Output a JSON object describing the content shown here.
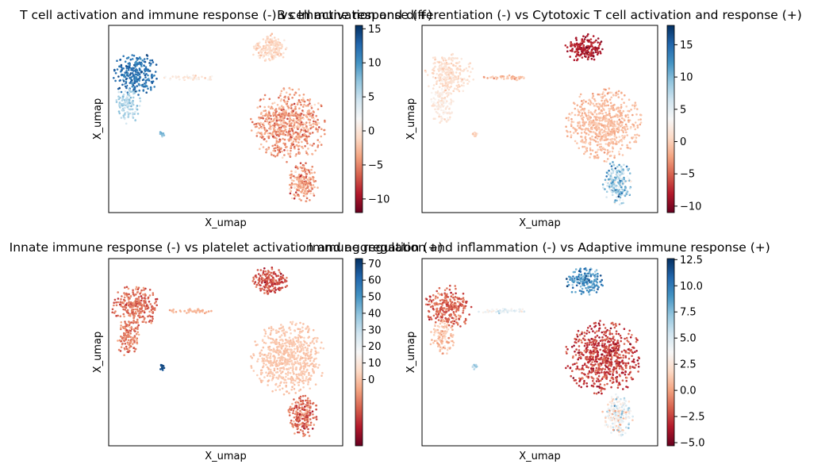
{
  "chart_data": [
    {
      "type": "scatter",
      "title": "T cell activation and immune response (-) vs Immune response (+)",
      "xlabel": "X_umap",
      "ylabel": "X_umap",
      "colormap": "RdBu",
      "colorbar": {
        "range": [
          -12,
          15.5
        ],
        "ticks": [
          15,
          10,
          5,
          0,
          -5,
          -10
        ],
        "tick_labels": [
          "15",
          "10",
          "5",
          "0",
          "−5",
          "−10"
        ]
      },
      "clusters": [
        {
          "name": "left-upper",
          "values_mean": 12,
          "values_range": [
            9,
            15
          ]
        },
        {
          "name": "left-lower",
          "values_mean": 6,
          "values_range": [
            3,
            9
          ]
        },
        {
          "name": "bridge",
          "values_mean": 0,
          "values_range": [
            -2,
            3
          ]
        },
        {
          "name": "small-isolated",
          "values_mean": 8,
          "values_range": [
            6,
            10
          ]
        },
        {
          "name": "top-right",
          "values_mean": -1,
          "values_range": [
            -3,
            1
          ]
        },
        {
          "name": "right-main",
          "values_mean": -4,
          "values_range": [
            -9,
            -1
          ]
        },
        {
          "name": "right-tail",
          "values_mean": -4,
          "values_range": [
            -10,
            0
          ]
        }
      ]
    },
    {
      "type": "scatter",
      "title": "B cell activation and differentiation (-) vs Cytotoxic T cell activation and response (+)",
      "xlabel": "X_umap",
      "ylabel": "X_umap",
      "colormap": "RdBu",
      "colorbar": {
        "range": [
          -11,
          18
        ],
        "ticks": [
          15,
          10,
          5,
          0,
          -5,
          -10
        ],
        "tick_labels": [
          "15",
          "10",
          "5",
          "0",
          "−5",
          "−10"
        ]
      },
      "clusters": [
        {
          "name": "left-upper",
          "values_mean": 1,
          "values_range": [
            -1,
            3
          ]
        },
        {
          "name": "left-lower",
          "values_mean": 2,
          "values_range": [
            0,
            4
          ]
        },
        {
          "name": "bridge",
          "values_mean": -1,
          "values_range": [
            -4,
            1
          ]
        },
        {
          "name": "small-isolated",
          "values_mean": 0,
          "values_range": [
            -2,
            2
          ]
        },
        {
          "name": "top-right",
          "values_mean": -8,
          "values_range": [
            -11,
            -5
          ]
        },
        {
          "name": "right-main",
          "values_mean": -1,
          "values_range": [
            -3,
            1
          ]
        },
        {
          "name": "right-tail",
          "values_mean": 8,
          "values_range": [
            2,
            18
          ]
        }
      ]
    },
    {
      "type": "scatter",
      "title": "Innate immune response (-) vs platelet activation and aggregation (+)",
      "xlabel": "X_umap",
      "ylabel": "X_umap",
      "colormap": "RdBu",
      "colorbar": {
        "range": [
          -40,
          73
        ],
        "ticks": [
          70,
          60,
          50,
          40,
          30,
          20,
          10,
          0
        ],
        "tick_labels": [
          "70",
          "60",
          "50",
          "40",
          "30",
          "20",
          "10",
          "0"
        ]
      },
      "clusters": [
        {
          "name": "left-upper",
          "values_mean": -15,
          "values_range": [
            -30,
            -5
          ]
        },
        {
          "name": "left-lower",
          "values_mean": -12,
          "values_range": [
            -25,
            -3
          ]
        },
        {
          "name": "bridge",
          "values_mean": -3,
          "values_range": [
            -8,
            2
          ]
        },
        {
          "name": "small-isolated",
          "values_mean": 68,
          "values_range": [
            60,
            73
          ]
        },
        {
          "name": "top-right",
          "values_mean": -20,
          "values_range": [
            -35,
            -10
          ]
        },
        {
          "name": "right-main",
          "values_mean": 1,
          "values_range": [
            -3,
            5
          ]
        },
        {
          "name": "right-tail",
          "values_mean": -15,
          "values_range": [
            -35,
            0
          ]
        }
      ]
    },
    {
      "type": "scatter",
      "title": "Immune regulation and inflammation (-) vs Adaptive immune response (+)",
      "xlabel": "X_umap",
      "ylabel": "X_umap",
      "colormap": "RdBu",
      "colorbar": {
        "range": [
          -5.3,
          12.6
        ],
        "ticks": [
          12.5,
          10.0,
          7.5,
          5.0,
          2.5,
          0.0,
          -2.5,
          -5.0
        ],
        "tick_labels": [
          "12.5",
          "10.0",
          "7.5",
          "5.0",
          "2.5",
          "0.0",
          "−2.5",
          "−5.0"
        ]
      },
      "clusters": [
        {
          "name": "left-upper",
          "values_mean": -1.5,
          "values_range": [
            -3.5,
            0.5
          ]
        },
        {
          "name": "left-lower",
          "values_mean": 1.0,
          "values_range": [
            -1,
            3
          ]
        },
        {
          "name": "bridge",
          "values_mean": 4,
          "values_range": [
            1,
            7
          ]
        },
        {
          "name": "small-isolated",
          "values_mean": 6,
          "values_range": [
            4,
            8
          ]
        },
        {
          "name": "top-right",
          "values_mean": 9,
          "values_range": [
            6,
            12.5
          ]
        },
        {
          "name": "right-main",
          "values_mean": -2.5,
          "values_range": [
            -5,
            -0.5
          ]
        },
        {
          "name": "right-tail",
          "values_mean": 4,
          "values_range": [
            0,
            10
          ]
        }
      ]
    }
  ]
}
